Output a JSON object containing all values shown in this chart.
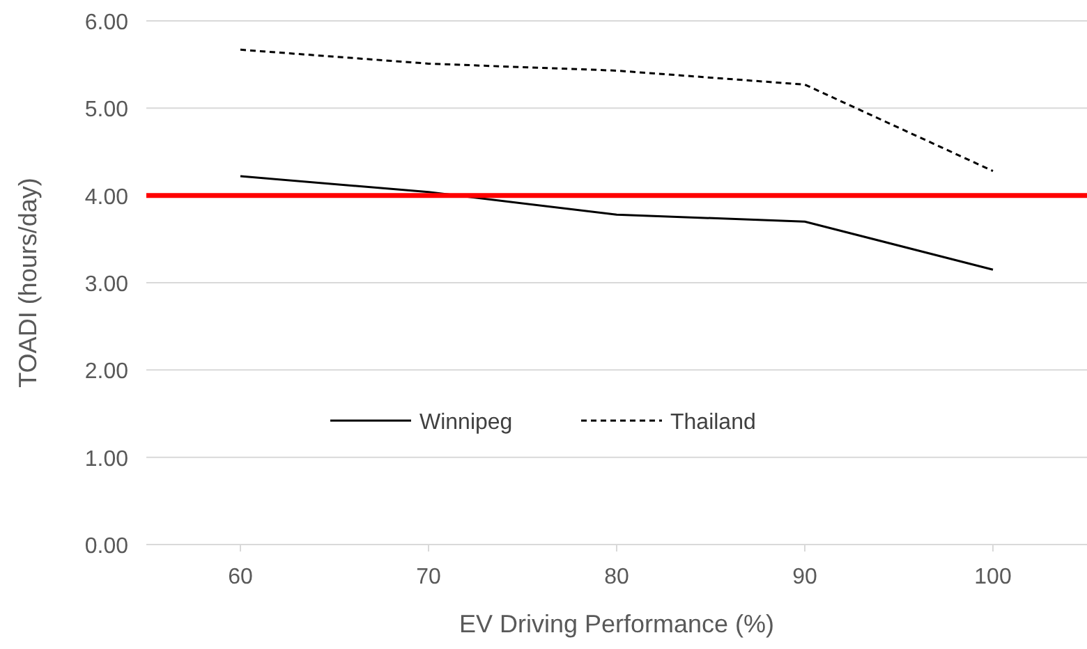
{
  "chart_data": {
    "type": "line",
    "xlabel": "EV Driving Performance (%)",
    "ylabel": "TOADI (hours/day)",
    "categories": [
      "60",
      "70",
      "80",
      "90",
      "100"
    ],
    "series": [
      {
        "name": "Winnipeg",
        "color": "#000000",
        "line_style": "solid",
        "values": [
          4.22,
          4.04,
          3.78,
          3.7,
          3.15
        ]
      },
      {
        "name": "Thailand",
        "color": "#000000",
        "line_style": "dashed",
        "values": [
          5.67,
          5.51,
          5.43,
          5.27,
          4.28
        ]
      }
    ],
    "ylim": [
      0,
      6
    ],
    "yticks": [
      {
        "value": 0,
        "label": "0.00"
      },
      {
        "value": 1,
        "label": "1.00"
      },
      {
        "value": 2,
        "label": "2.00"
      },
      {
        "value": 3,
        "label": "3.00"
      },
      {
        "value": 4,
        "label": "4.00"
      },
      {
        "value": 5,
        "label": "5.00"
      },
      {
        "value": 6,
        "label": "6.00"
      }
    ],
    "grid": "y",
    "legend": "bottom",
    "marker": "none",
    "ref_lines": [
      {
        "axis": "y",
        "value": 4,
        "color": "#ff0000"
      }
    ]
  }
}
